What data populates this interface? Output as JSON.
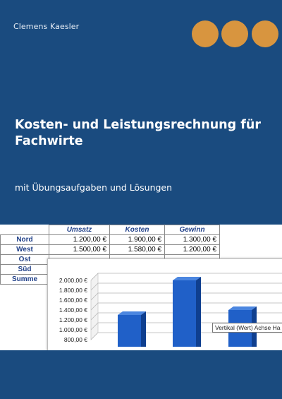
{
  "cover": {
    "author": "Clemens Kaesler",
    "title_line1": "Kosten- und Leistungsrechnung für",
    "title_line2": "Fachwirte",
    "subtitle": "mit Übungsaufgaben und Lösungen",
    "background_color": "#1a4b7f",
    "dot_color": "#d8953f"
  },
  "table": {
    "headers": [
      "Umsatz",
      "Kosten",
      "Gewinn"
    ],
    "rows": [
      {
        "label": "Nord",
        "values": [
          "1.200,00 €",
          "1.900,00 €",
          "1.300,00 €"
        ]
      },
      {
        "label": "West",
        "values": [
          "1.500,00 €",
          "1.580,00 €",
          "1.200,00 €"
        ]
      },
      {
        "label": "Ost",
        "values": []
      },
      {
        "label": "Süd",
        "values": []
      },
      {
        "label": "Summe",
        "values": []
      }
    ]
  },
  "chart_data": {
    "type": "bar",
    "y_ticks": [
      "2.000,00 €",
      "1.800,00 €",
      "1.600,00 €",
      "1.400,00 €",
      "1.200,00 €",
      "1.000,00 €",
      "800,00 €"
    ],
    "ylim": [
      800,
      2000
    ],
    "values": [
      1300,
      2000,
      1400
    ],
    "bar_color": "#2060c8",
    "tooltip": "Vertikal (Wert) Achse Ha"
  }
}
